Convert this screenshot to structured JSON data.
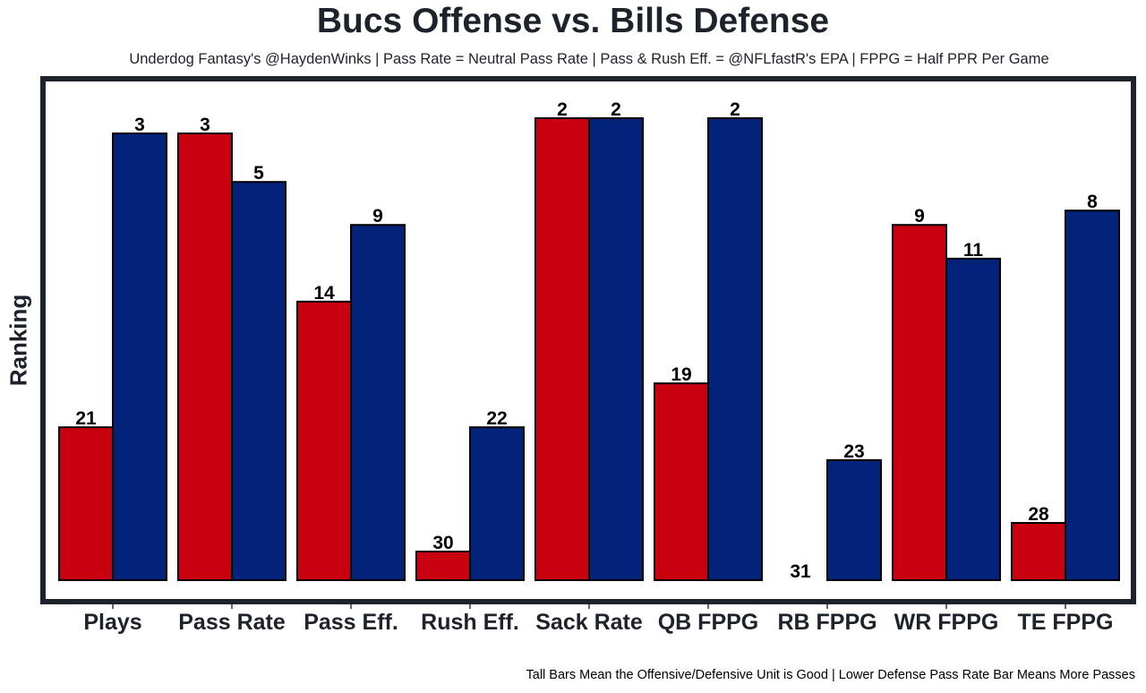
{
  "chart_data": {
    "type": "bar",
    "title": "Bucs Offense vs. Bills Defense",
    "subtitle": "Underdog Fantasy's @HaydenWinks | Pass Rate = Neutral Pass Rate | Pass & Rush Eff. = @NFLfastR's EPA | FPPG = Half PPR Per Game",
    "caption": "Tall Bars Mean the Offensive/Defensive Unit is Good | Lower Defense Pass Rate Bar Means More Passes",
    "xlabel": "",
    "ylabel": "Ranking",
    "categories": [
      "Plays",
      "Pass Rate",
      "Pass Eff.",
      "Rush Eff.",
      "Sack Rate",
      "QB FPPG",
      "RB FPPG",
      "WR FPPG",
      "TE FPPG"
    ],
    "series": [
      {
        "name": "Bucs Offense",
        "color": "#c8000f",
        "rank_labels": [
          21,
          3,
          14,
          30,
          2,
          19,
          31,
          9,
          28
        ],
        "bar_values": [
          33.1,
          96.7,
          60.3,
          6.2,
          100,
          42.6,
          0,
          76.9,
          12.4
        ]
      },
      {
        "name": "Bills Defense",
        "color": "#03227a",
        "rank_labels": [
          3,
          5,
          9,
          22,
          2,
          2,
          23,
          11,
          8
        ],
        "bar_values": [
          96.7,
          86.2,
          76.9,
          33.1,
          100,
          100,
          26.0,
          69.6,
          80.0
        ]
      }
    ],
    "ylim": [
      0,
      100
    ],
    "y_ticks_shown": false,
    "grid": false,
    "legend": "none"
  }
}
